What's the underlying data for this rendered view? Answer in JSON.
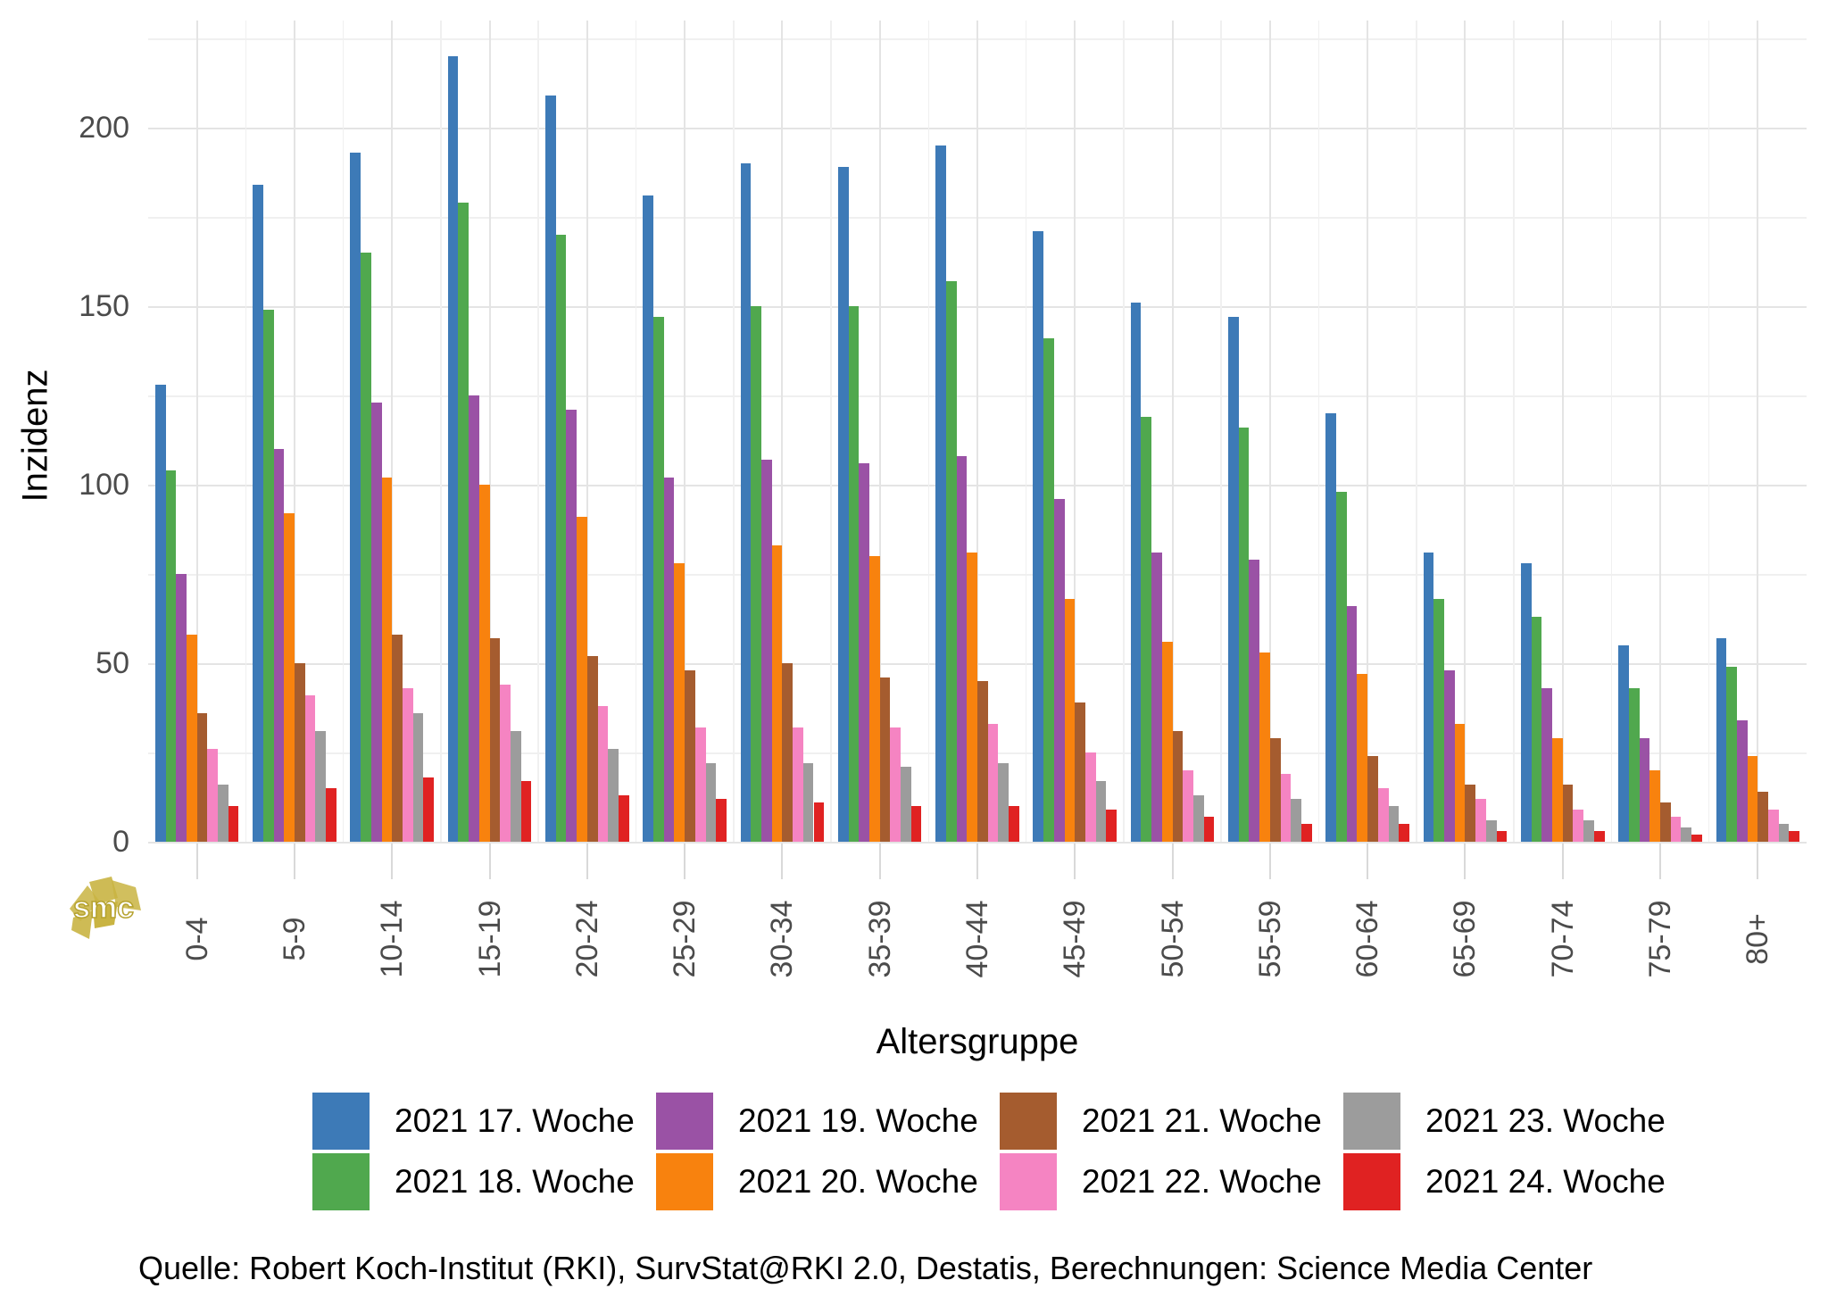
{
  "chart_data": {
    "type": "bar",
    "title": "",
    "xlabel": "Altersgruppe",
    "ylabel": "Inzidenz",
    "ylim": [
      0,
      230
    ],
    "yticks": [
      0,
      50,
      100,
      150,
      200
    ],
    "yticks_minor": [
      25,
      75,
      125,
      175,
      225
    ],
    "grid": true,
    "legend_position": "bottom",
    "categories": [
      "0-4",
      "5-9",
      "10-14",
      "15-19",
      "20-24",
      "25-29",
      "30-34",
      "35-39",
      "40-44",
      "45-49",
      "50-54",
      "55-59",
      "60-64",
      "65-69",
      "70-74",
      "75-79",
      "80+"
    ],
    "series": [
      {
        "name": "2021 17. Woche",
        "color": "#3d7ab7",
        "values": [
          128,
          184,
          193,
          220,
          209,
          181,
          190,
          189,
          195,
          171,
          151,
          147,
          120,
          81,
          78,
          55,
          57
        ]
      },
      {
        "name": "2021 18. Woche",
        "color": "#50a84e",
        "values": [
          104,
          149,
          165,
          179,
          170,
          147,
          150,
          150,
          157,
          141,
          119,
          116,
          98,
          68,
          63,
          43,
          49
        ]
      },
      {
        "name": "2021 19. Woche",
        "color": "#9a52a5",
        "values": [
          75,
          110,
          123,
          125,
          121,
          102,
          107,
          106,
          108,
          96,
          81,
          79,
          66,
          48,
          43,
          29,
          34
        ]
      },
      {
        "name": "2021 20. Woche",
        "color": "#f8820e",
        "values": [
          58,
          92,
          102,
          100,
          91,
          78,
          83,
          80,
          81,
          68,
          56,
          53,
          47,
          33,
          29,
          20,
          24
        ]
      },
      {
        "name": "2021 21. Woche",
        "color": "#a55c2f",
        "values": [
          36,
          50,
          58,
          57,
          52,
          48,
          50,
          46,
          45,
          39,
          31,
          29,
          24,
          16,
          16,
          11,
          14
        ]
      },
      {
        "name": "2021 22. Woche",
        "color": "#f584c2",
        "values": [
          26,
          41,
          43,
          44,
          38,
          32,
          32,
          32,
          33,
          25,
          20,
          19,
          15,
          12,
          9,
          7,
          9
        ]
      },
      {
        "name": "2021 23. Woche",
        "color": "#9c9c9c",
        "values": [
          16,
          31,
          36,
          31,
          26,
          22,
          22,
          21,
          22,
          17,
          13,
          12,
          10,
          6,
          6,
          4,
          5
        ]
      },
      {
        "name": "2021 24. Woche",
        "color": "#e02222",
        "values": [
          10,
          15,
          18,
          17,
          13,
          12,
          11,
          10,
          10,
          9,
          7,
          5,
          5,
          3,
          3,
          2,
          3
        ]
      }
    ]
  },
  "axis": {
    "x_title": "Altersgruppe",
    "y_title": "Inzidenz"
  },
  "watermark": {
    "text": "smc",
    "color": "#c9b442"
  },
  "source_line": "Quelle: Robert Koch-Institut (RKI), SurvStat@RKI 2.0, Destatis, Berechnungen: Science Media Center"
}
